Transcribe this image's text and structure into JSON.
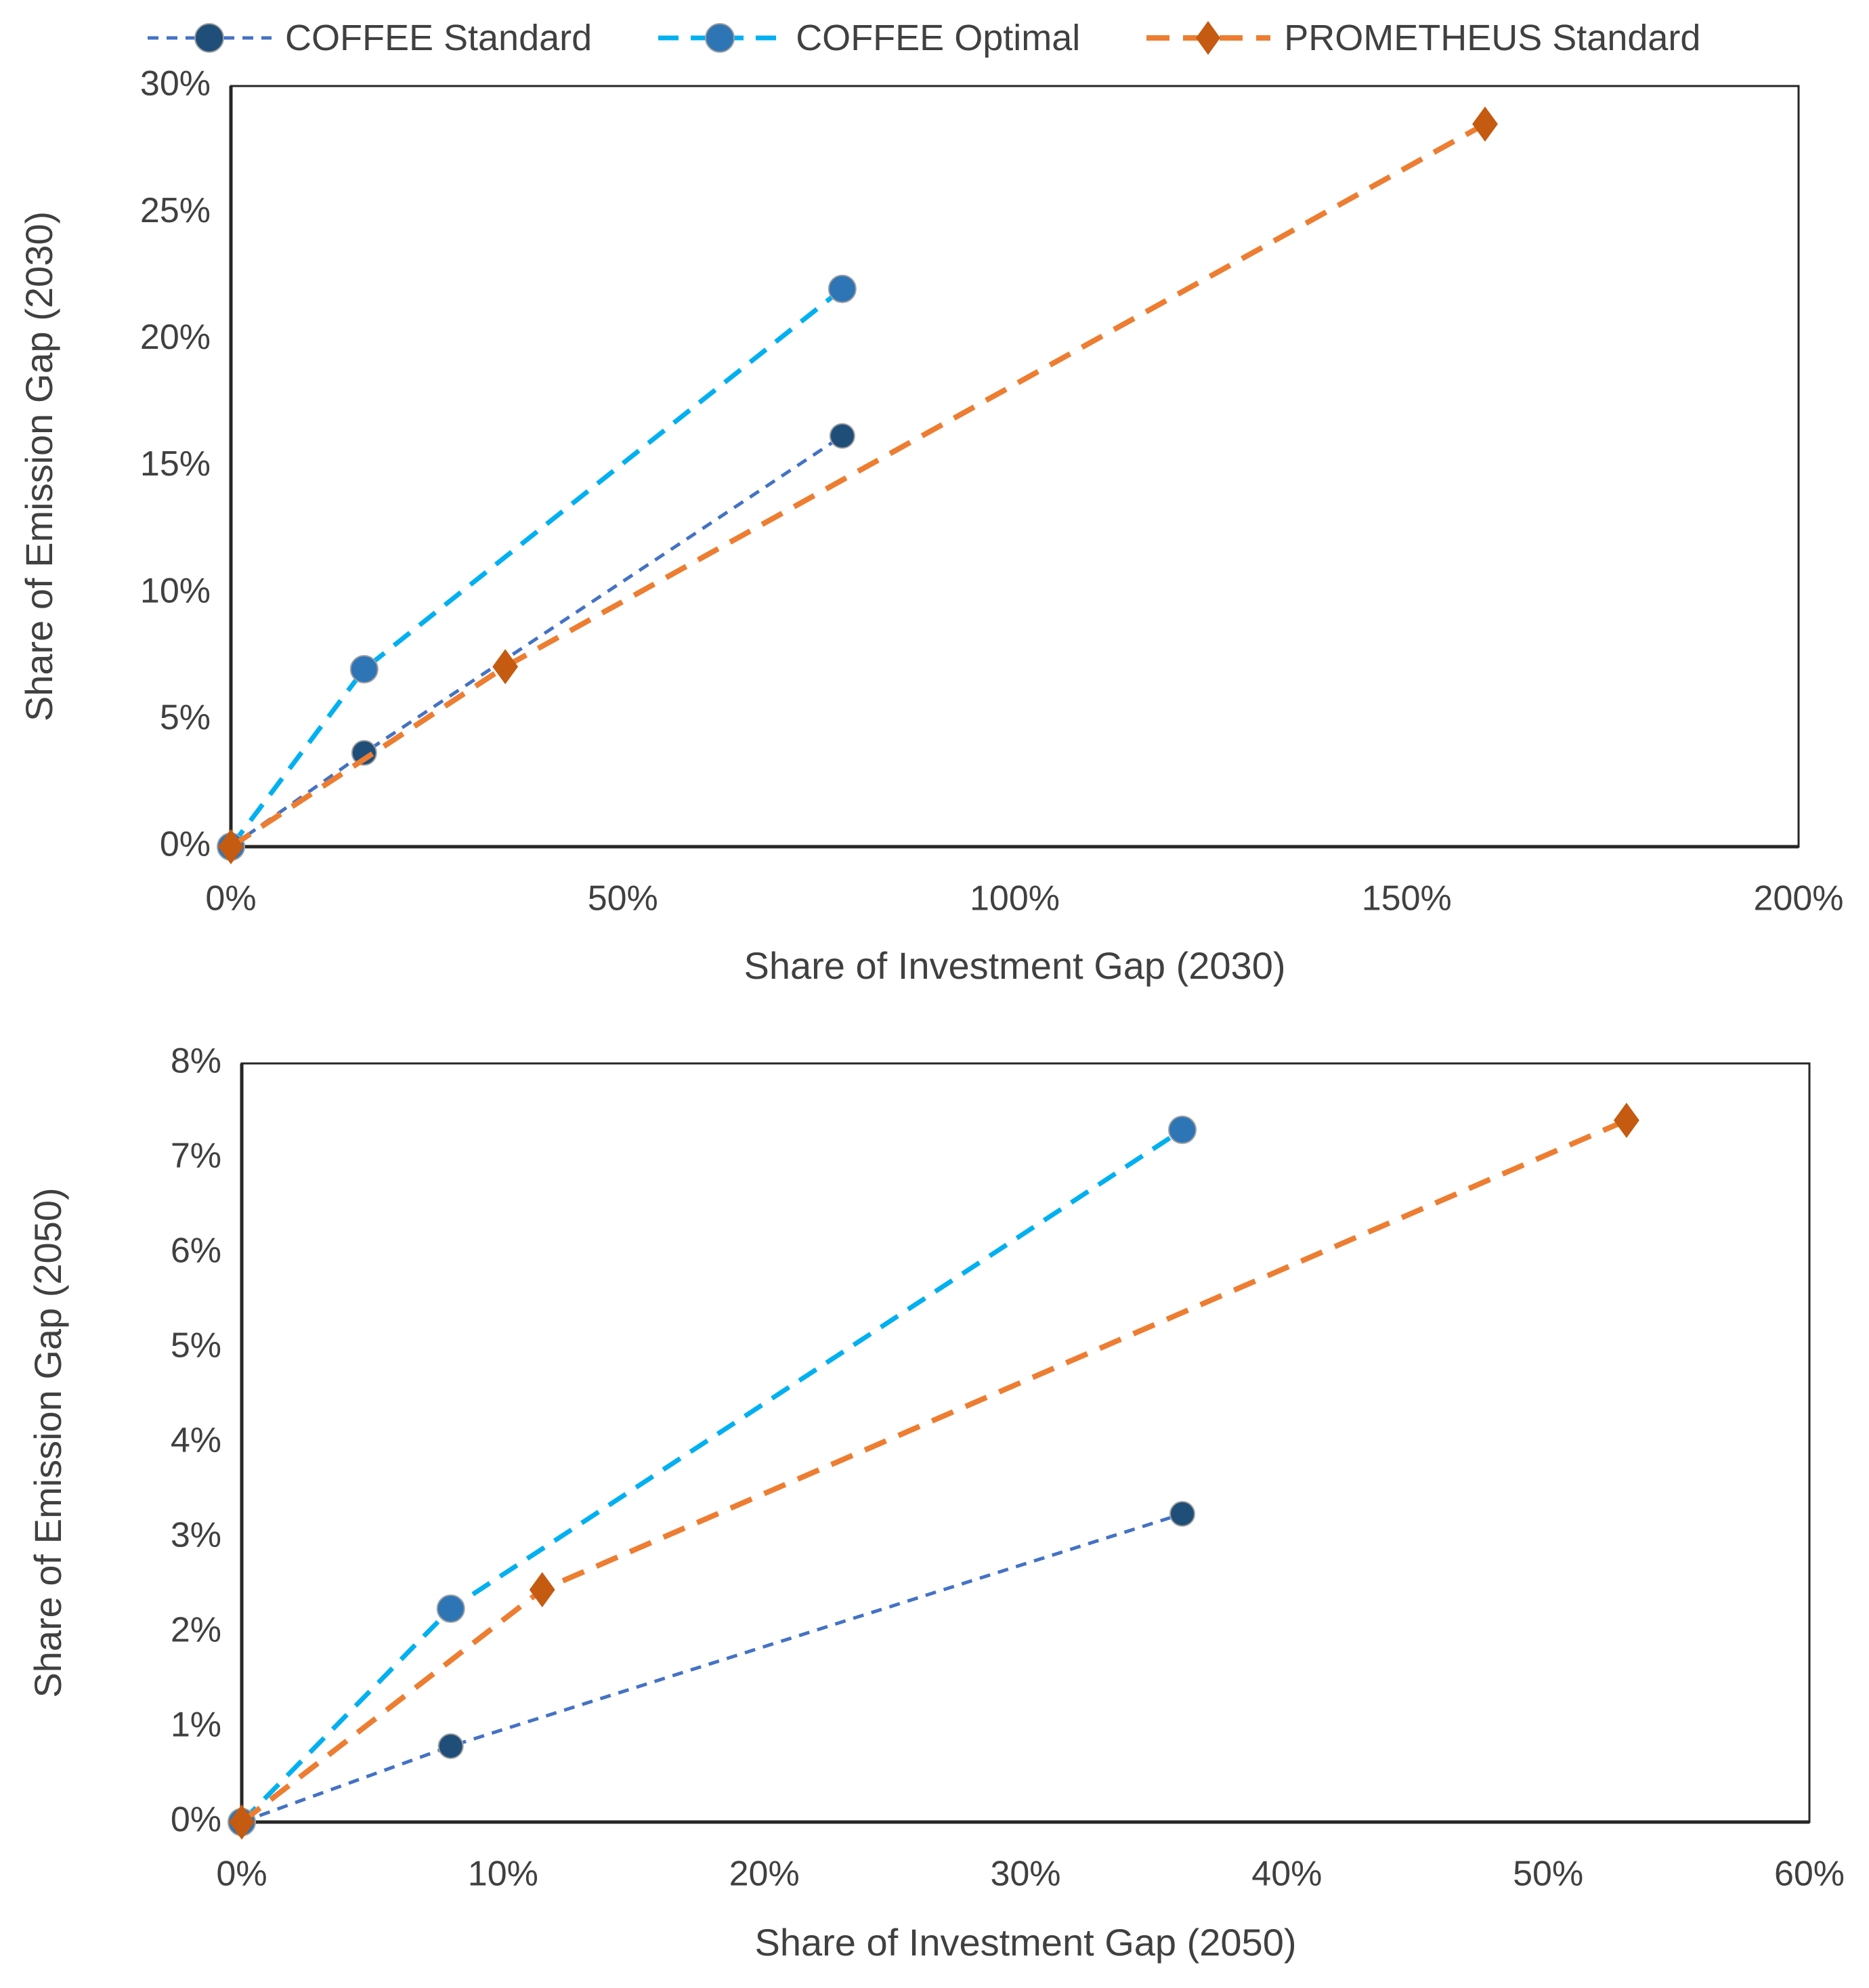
{
  "page": {
    "background": "#ffffff"
  },
  "style": {
    "text_color": "#404040",
    "frame_color": "#262626"
  },
  "legend": {
    "position": "top",
    "items": [
      {
        "label": "COFFEE Standard",
        "marker": "circle",
        "line_color": "#4472C4",
        "marker_color": "#1F4E79",
        "dash": "16 12",
        "line_width": 5
      },
      {
        "label": "COFFEE Optimal",
        "marker": "circle",
        "line_color": "#00B0F0",
        "marker_color": "#2E75B6",
        "dash": "30 18",
        "line_width": 7
      },
      {
        "label": "PROMETHEUS Standard",
        "marker": "diamond",
        "line_color": "#ED7D31",
        "marker_color": "#C55A11",
        "dash": "34 20",
        "line_width": 8
      }
    ]
  },
  "chart_data": [
    {
      "type": "line",
      "title": "",
      "xlabel": "Share of Investment Gap (2030)",
      "ylabel": "Share of Emission Gap (2030)",
      "xlim": [
        0,
        200
      ],
      "ylim": [
        0,
        30
      ],
      "xticks": [
        0,
        50,
        100,
        150,
        200
      ],
      "xtick_labels": [
        "0%",
        "50%",
        "100%",
        "150%",
        "200%"
      ],
      "yticks": [
        0,
        5,
        10,
        15,
        20,
        25,
        30
      ],
      "ytick_labels": [
        "0%",
        "5%",
        "10%",
        "15%",
        "20%",
        "25%",
        "30%"
      ],
      "grid": false,
      "series": [
        {
          "name": "COFFEE Standard",
          "marker": "circle",
          "line_color": "#4472C4",
          "marker_color": "#1F4E79",
          "dash": "16 12",
          "line_width": 5,
          "marker_size": 18,
          "points": [
            [
              0,
              0
            ],
            [
              17,
              3.7
            ],
            [
              78,
              16.2
            ]
          ]
        },
        {
          "name": "COFFEE Optimal",
          "marker": "circle",
          "line_color": "#00B0F0",
          "marker_color": "#2E75B6",
          "dash": "30 18",
          "line_width": 7,
          "marker_size": 20,
          "points": [
            [
              0,
              0
            ],
            [
              17,
              7.0
            ],
            [
              78,
              22.0
            ]
          ]
        },
        {
          "name": "PROMETHEUS Standard",
          "marker": "diamond",
          "line_color": "#ED7D31",
          "marker_color": "#C55A11",
          "dash": "34 20",
          "line_width": 8,
          "marker_size": 22,
          "points": [
            [
              0,
              0
            ],
            [
              35,
              7.1
            ],
            [
              160,
              28.5
            ]
          ]
        }
      ]
    },
    {
      "type": "line",
      "title": "",
      "xlabel": "Share of Investment Gap (2050)",
      "ylabel": "Share of Emission Gap (2050)",
      "xlim": [
        0,
        60
      ],
      "ylim": [
        0,
        8
      ],
      "xticks": [
        0,
        10,
        20,
        30,
        40,
        50,
        60
      ],
      "xtick_labels": [
        "0%",
        "10%",
        "20%",
        "30%",
        "40%",
        "50%",
        "60%"
      ],
      "yticks": [
        0,
        1,
        2,
        3,
        4,
        5,
        6,
        7,
        8
      ],
      "ytick_labels": [
        "0%",
        "1%",
        "2%",
        "3%",
        "4%",
        "5%",
        "6%",
        "7%",
        "8%"
      ],
      "grid": false,
      "series": [
        {
          "name": "COFFEE Standard",
          "marker": "circle",
          "line_color": "#4472C4",
          "marker_color": "#1F4E79",
          "dash": "16 12",
          "line_width": 5,
          "marker_size": 18,
          "points": [
            [
              0,
              0
            ],
            [
              8,
              0.8
            ],
            [
              36,
              3.25
            ]
          ]
        },
        {
          "name": "COFFEE Optimal",
          "marker": "circle",
          "line_color": "#00B0F0",
          "marker_color": "#2E75B6",
          "dash": "30 18",
          "line_width": 7,
          "marker_size": 20,
          "points": [
            [
              0,
              0
            ],
            [
              8,
              2.25
            ],
            [
              36,
              7.3
            ]
          ]
        },
        {
          "name": "PROMETHEUS Standard",
          "marker": "diamond",
          "line_color": "#ED7D31",
          "marker_color": "#C55A11",
          "dash": "34 20",
          "line_width": 8,
          "marker_size": 22,
          "points": [
            [
              0,
              0
            ],
            [
              11.5,
              2.45
            ],
            [
              53,
              7.4
            ]
          ]
        }
      ]
    }
  ]
}
